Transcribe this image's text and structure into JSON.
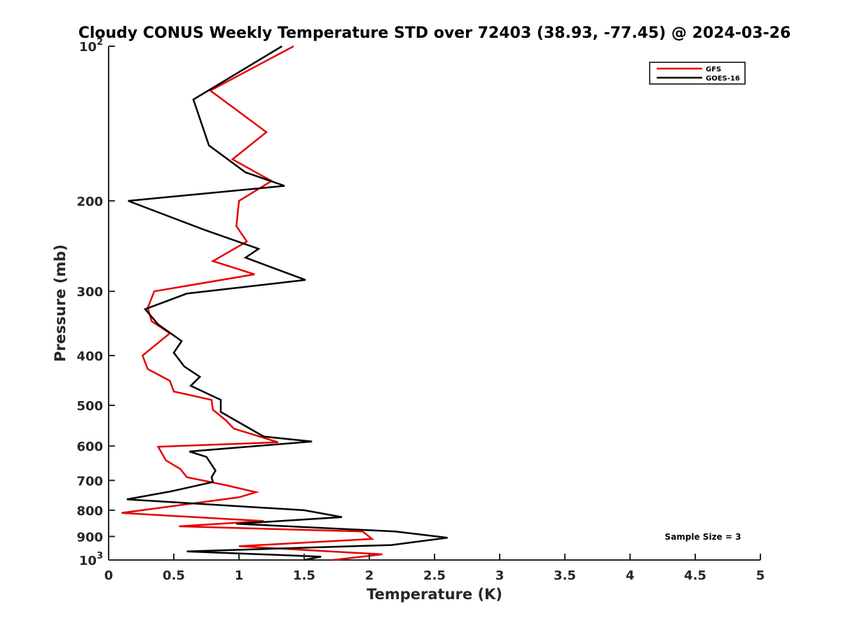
{
  "chart_data": {
    "type": "line",
    "title": "Cloudy CONUS Weekly Temperature STD over 72403 (38.93, -77.45) @ 2024-03-26",
    "xlabel": "Temperature (K)",
    "ylabel": "Pressure (mb)",
    "xlim": [
      0,
      5
    ],
    "ylim": [
      100,
      1000
    ],
    "y_scale": "log",
    "y_reversed": true,
    "grid": false,
    "legend_position": "top-right",
    "x_ticks": [
      "0",
      "0.5",
      "1",
      "1.5",
      "2",
      "2.5",
      "3",
      "3.5",
      "4",
      "4.5",
      "5"
    ],
    "x_tick_values": [
      0,
      0.5,
      1,
      1.5,
      2,
      2.5,
      3,
      3.5,
      4,
      4.5,
      5
    ],
    "y_ticks": [
      {
        "value": 100,
        "base": "10",
        "exp": "2"
      },
      {
        "value": 200,
        "label": "200"
      },
      {
        "value": 300,
        "label": "300"
      },
      {
        "value": 400,
        "label": "400"
      },
      {
        "value": 500,
        "label": "500"
      },
      {
        "value": 600,
        "label": "600"
      },
      {
        "value": 700,
        "label": "700"
      },
      {
        "value": 800,
        "label": "800"
      },
      {
        "value": 900,
        "label": "900"
      },
      {
        "value": 1000,
        "base": "10",
        "exp": "3"
      }
    ],
    "annotation": "Sample Size = 3",
    "series": [
      {
        "name": "GFS",
        "color": "#e60000",
        "points": [
          [
            1.42,
            100
          ],
          [
            0.78,
            122
          ],
          [
            1.21,
            147
          ],
          [
            0.95,
            166
          ],
          [
            1.25,
            183
          ],
          [
            1.0,
            200
          ],
          [
            0.98,
            224
          ],
          [
            1.06,
            240
          ],
          [
            0.8,
            262
          ],
          [
            1.12,
            278
          ],
          [
            0.35,
            300
          ],
          [
            0.3,
            323
          ],
          [
            0.33,
            343
          ],
          [
            0.47,
            362
          ],
          [
            0.26,
            400
          ],
          [
            0.3,
            425
          ],
          [
            0.47,
            448
          ],
          [
            0.5,
            470
          ],
          [
            0.79,
            488
          ],
          [
            0.8,
            510
          ],
          [
            0.9,
            535
          ],
          [
            0.96,
            555
          ],
          [
            1.3,
            590
          ],
          [
            0.38,
            602
          ],
          [
            0.44,
            640
          ],
          [
            0.55,
            665
          ],
          [
            0.6,
            690
          ],
          [
            0.9,
            715
          ],
          [
            1.13,
            738
          ],
          [
            1.0,
            755
          ],
          [
            0.1,
            810
          ],
          [
            1.19,
            840
          ],
          [
            0.54,
            860
          ],
          [
            1.95,
            880
          ],
          [
            2.02,
            910
          ],
          [
            1.0,
            940
          ],
          [
            2.1,
            975
          ],
          [
            1.72,
            1000
          ]
        ]
      },
      {
        "name": "GOES-16",
        "color": "#000000",
        "points": [
          [
            1.33,
            100
          ],
          [
            0.65,
            127
          ],
          [
            0.77,
            156
          ],
          [
            1.05,
            176
          ],
          [
            1.35,
            187
          ],
          [
            0.15,
            200
          ],
          [
            0.74,
            228
          ],
          [
            1.15,
            248
          ],
          [
            1.05,
            258
          ],
          [
            1.51,
            285
          ],
          [
            0.6,
            303
          ],
          [
            0.28,
            325
          ],
          [
            0.38,
            348
          ],
          [
            0.56,
            375
          ],
          [
            0.5,
            395
          ],
          [
            0.58,
            420
          ],
          [
            0.7,
            440
          ],
          [
            0.63,
            458
          ],
          [
            0.86,
            488
          ],
          [
            0.86,
            515
          ],
          [
            1.19,
            575
          ],
          [
            1.56,
            588
          ],
          [
            0.62,
            615
          ],
          [
            0.75,
            630
          ],
          [
            0.82,
            670
          ],
          [
            0.79,
            690
          ],
          [
            0.8,
            705
          ],
          [
            0.48,
            735
          ],
          [
            0.14,
            762
          ],
          [
            1.5,
            800
          ],
          [
            1.79,
            825
          ],
          [
            0.98,
            850
          ],
          [
            2.2,
            880
          ],
          [
            2.6,
            905
          ],
          [
            2.17,
            935
          ],
          [
            0.6,
            962
          ],
          [
            1.63,
            985
          ],
          [
            1.5,
            1000
          ]
        ]
      }
    ]
  }
}
